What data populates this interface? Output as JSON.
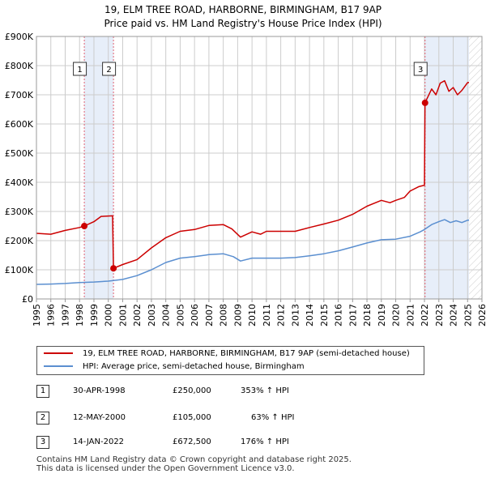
{
  "header": {
    "title_line1": "19, ELM TREE ROAD, HARBORNE, BIRMINGHAM, B17 9AP",
    "title_line2": "Price paid vs. HM Land Registry's House Price Index (HPI)"
  },
  "colors": {
    "red": "#cc0000",
    "blue": "#5b8fd0",
    "shade": "#e7eef9",
    "grid": "#cccccc"
  },
  "chart_data": {
    "type": "line",
    "xlim": [
      1995,
      2026
    ],
    "ylim": [
      0,
      900000
    ],
    "x_ticks": [
      "1995",
      "1996",
      "1997",
      "1998",
      "1999",
      "2000",
      "2001",
      "2002",
      "2003",
      "2004",
      "2005",
      "2006",
      "2007",
      "2008",
      "2009",
      "2010",
      "2011",
      "2012",
      "2013",
      "2014",
      "2015",
      "2016",
      "2017",
      "2018",
      "2019",
      "2020",
      "2021",
      "2022",
      "2023",
      "2024",
      "2025",
      "2026"
    ],
    "y_ticks": [
      {
        "value": 0,
        "label": "£0"
      },
      {
        "value": 100000,
        "label": "£100K"
      },
      {
        "value": 200000,
        "label": "£200K"
      },
      {
        "value": 300000,
        "label": "£300K"
      },
      {
        "value": 400000,
        "label": "£400K"
      },
      {
        "value": 500000,
        "label": "£500K"
      },
      {
        "value": 600000,
        "label": "£600K"
      },
      {
        "value": 700000,
        "label": "£700K"
      },
      {
        "value": 800000,
        "label": "£800K"
      },
      {
        "value": 900000,
        "label": "£900K"
      }
    ],
    "shaded_ranges": [
      [
        1998.33,
        2000.36
      ],
      [
        2022.04,
        2025.1
      ]
    ],
    "future_hatch_from": 2025.1,
    "series": [
      {
        "name": "19, ELM TREE ROAD, HARBORNE, BIRMINGHAM, B17 9AP (semi-detached house)",
        "color": "#cc0000",
        "points": [
          [
            1995,
            225000
          ],
          [
            1996,
            222000
          ],
          [
            1997,
            235000
          ],
          [
            1998.0,
            245000
          ],
          [
            1998.33,
            250000
          ],
          [
            1999,
            265000
          ],
          [
            1999.5,
            283000
          ],
          [
            2000.3,
            285000
          ],
          [
            2000.36,
            105000
          ],
          [
            2001,
            118000
          ],
          [
            2002,
            135000
          ],
          [
            2003,
            175000
          ],
          [
            2004,
            210000
          ],
          [
            2005,
            232000
          ],
          [
            2006,
            238000
          ],
          [
            2007,
            252000
          ],
          [
            2008,
            255000
          ],
          [
            2008.6,
            240000
          ],
          [
            2009.2,
            212000
          ],
          [
            2010,
            230000
          ],
          [
            2010.6,
            222000
          ],
          [
            2011,
            232000
          ],
          [
            2012,
            232000
          ],
          [
            2013,
            232000
          ],
          [
            2014,
            245000
          ],
          [
            2015,
            257000
          ],
          [
            2016,
            270000
          ],
          [
            2017,
            290000
          ],
          [
            2018,
            318000
          ],
          [
            2019,
            338000
          ],
          [
            2019.6,
            330000
          ],
          [
            2020,
            338000
          ],
          [
            2020.6,
            348000
          ],
          [
            2021,
            370000
          ],
          [
            2021.6,
            385000
          ],
          [
            2022.0,
            390000
          ],
          [
            2022.04,
            672500
          ],
          [
            2022.5,
            720000
          ],
          [
            2022.8,
            700000
          ],
          [
            2023.1,
            740000
          ],
          [
            2023.4,
            748000
          ],
          [
            2023.7,
            712000
          ],
          [
            2024.0,
            725000
          ],
          [
            2024.3,
            700000
          ],
          [
            2024.6,
            715000
          ],
          [
            2025.0,
            742000
          ],
          [
            2025.1,
            742000
          ]
        ]
      },
      {
        "name": "HPI: Average price, semi-detached house, Birmingham",
        "color": "#5b8fd0",
        "points": [
          [
            1995,
            50000
          ],
          [
            1996,
            51000
          ],
          [
            1997,
            53000
          ],
          [
            1998,
            56000
          ],
          [
            1999,
            58000
          ],
          [
            2000,
            61000
          ],
          [
            2001,
            67000
          ],
          [
            2002,
            80000
          ],
          [
            2003,
            100000
          ],
          [
            2004,
            125000
          ],
          [
            2005,
            140000
          ],
          [
            2006,
            145000
          ],
          [
            2007,
            152000
          ],
          [
            2008,
            155000
          ],
          [
            2008.7,
            145000
          ],
          [
            2009.2,
            130000
          ],
          [
            2010,
            140000
          ],
          [
            2011,
            140000
          ],
          [
            2012,
            140000
          ],
          [
            2013,
            142000
          ],
          [
            2014,
            148000
          ],
          [
            2015,
            155000
          ],
          [
            2016,
            165000
          ],
          [
            2017,
            178000
          ],
          [
            2018,
            192000
          ],
          [
            2019,
            203000
          ],
          [
            2020,
            205000
          ],
          [
            2021,
            215000
          ],
          [
            2021.7,
            230000
          ],
          [
            2022.0,
            238000
          ],
          [
            2022.5,
            255000
          ],
          [
            2023.0,
            265000
          ],
          [
            2023.4,
            272000
          ],
          [
            2023.8,
            262000
          ],
          [
            2024.2,
            268000
          ],
          [
            2024.6,
            262000
          ],
          [
            2025.0,
            270000
          ],
          [
            2025.1,
            270000
          ]
        ]
      }
    ],
    "markers": [
      {
        "label": "1",
        "x": 1998.33,
        "y": 250000
      },
      {
        "label": "2",
        "x": 2000.36,
        "y": 105000
      },
      {
        "label": "3",
        "x": 2022.04,
        "y": 672500
      }
    ]
  },
  "legend": {
    "red_label": "19, ELM TREE ROAD, HARBORNE, BIRMINGHAM, B17 9AP (semi-detached house)",
    "blue_label": "HPI: Average price, semi-detached house, Birmingham"
  },
  "transactions": [
    {
      "num": "1",
      "date": "30-APR-1998",
      "price": "£250,000",
      "change": "353% ↑ HPI"
    },
    {
      "num": "2",
      "date": "12-MAY-2000",
      "price": "£105,000",
      "change": "63% ↑ HPI"
    },
    {
      "num": "3",
      "date": "14-JAN-2022",
      "price": "£672,500",
      "change": "176% ↑ HPI"
    }
  ],
  "footer": {
    "line1": "Contains HM Land Registry data © Crown copyright and database right 2025.",
    "line2": "This data is licensed under the Open Government Licence v3.0."
  }
}
